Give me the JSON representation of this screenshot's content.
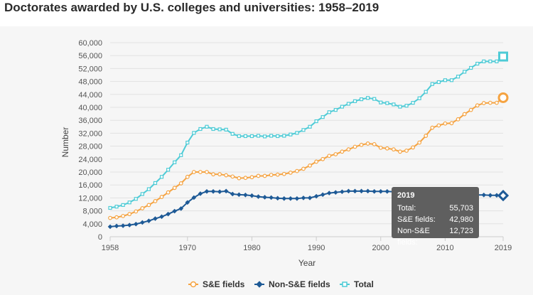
{
  "page": {
    "title": "Doctorates awarded by U.S. colleges and universities: 1958–2019"
  },
  "colors": {
    "se": "#f5a341",
    "nonse": "#1e5a96",
    "total": "#4ecbd6",
    "grid": "#e2e2e2",
    "axis": "#cccccc"
  },
  "chart_data": {
    "type": "line",
    "title": "Doctorates awarded by U.S. colleges and universities: 1958–2019",
    "xlabel": "Year",
    "ylabel": "Number",
    "xlim": [
      1958,
      2019
    ],
    "ylim": [
      0,
      60000
    ],
    "yticks": [
      0,
      4000,
      8000,
      12000,
      16000,
      20000,
      24000,
      28000,
      32000,
      36000,
      40000,
      44000,
      48000,
      52000,
      56000,
      60000
    ],
    "ytick_labels": [
      "0",
      "4,000",
      "8,000",
      "12,000",
      "16,000",
      "20,000",
      "24,000",
      "28,000",
      "32,000",
      "36,000",
      "40,000",
      "44,000",
      "48,000",
      "52,000",
      "56,000",
      "60,000"
    ],
    "xticks": [
      1958,
      1970,
      1980,
      1990,
      2000,
      2010,
      2019
    ],
    "xtick_labels": [
      "1958",
      "1970",
      "1980",
      "1990",
      "2000",
      "2010",
      "2019"
    ],
    "x": [
      1958,
      1959,
      1960,
      1961,
      1962,
      1963,
      1964,
      1965,
      1966,
      1967,
      1968,
      1969,
      1970,
      1971,
      1972,
      1973,
      1974,
      1975,
      1976,
      1977,
      1978,
      1979,
      1980,
      1981,
      1982,
      1983,
      1984,
      1985,
      1986,
      1987,
      1988,
      1989,
      1990,
      1991,
      1992,
      1993,
      1994,
      1995,
      1996,
      1997,
      1998,
      1999,
      2000,
      2001,
      2002,
      2003,
      2004,
      2005,
      2006,
      2007,
      2008,
      2009,
      2010,
      2011,
      2012,
      2013,
      2014,
      2015,
      2016,
      2017,
      2018,
      2019
    ],
    "series": [
      {
        "name": "S&E fields",
        "values": [
          5800,
          6000,
          6400,
          7000,
          7800,
          8800,
          9800,
          11000,
          12300,
          13700,
          15100,
          16500,
          18500,
          20000,
          20000,
          20000,
          19300,
          19300,
          19000,
          18600,
          18100,
          18200,
          18400,
          18800,
          18800,
          19100,
          19200,
          19400,
          19800,
          20300,
          21000,
          22000,
          23200,
          24000,
          25000,
          25500,
          26300,
          27000,
          27800,
          28400,
          28800,
          28600,
          27500,
          27300,
          27000,
          26300,
          26600,
          27600,
          29100,
          31200,
          33700,
          34400,
          35000,
          35100,
          36300,
          37900,
          39200,
          40600,
          41300,
          41400,
          41400,
          42980
        ]
      },
      {
        "name": "Non-S&E fields",
        "values": [
          3100,
          3300,
          3400,
          3600,
          3900,
          4400,
          4900,
          5600,
          6200,
          7000,
          7900,
          8700,
          10600,
          12100,
          13300,
          14000,
          14000,
          13900,
          14100,
          13200,
          13000,
          12900,
          12700,
          12400,
          12200,
          12100,
          11900,
          11800,
          11800,
          11800,
          12000,
          12000,
          12500,
          13000,
          13500,
          13700,
          13900,
          14100,
          14100,
          14100,
          14100,
          14000,
          14000,
          14000,
          13900,
          13900,
          13900,
          13800,
          13700,
          13600,
          13500,
          13400,
          13400,
          13300,
          13200,
          13100,
          13000,
          12900,
          12900,
          12800,
          12800,
          12723
        ]
      },
      {
        "name": "Total",
        "values": [
          8900,
          9300,
          9800,
          10600,
          11700,
          13200,
          14700,
          16600,
          18500,
          20700,
          23000,
          25200,
          29100,
          32100,
          33300,
          34000,
          33300,
          33200,
          33100,
          31800,
          31100,
          31100,
          31100,
          31200,
          31000,
          31200,
          31100,
          31200,
          31600,
          32100,
          33000,
          34000,
          35700,
          37000,
          38500,
          39200,
          40200,
          41100,
          41900,
          42500,
          42900,
          42600,
          41500,
          41300,
          40900,
          40200,
          40500,
          41400,
          42800,
          44800,
          47200,
          47800,
          48400,
          48400,
          49500,
          51000,
          52200,
          53500,
          54200,
          54200,
          54200,
          55703
        ]
      }
    ],
    "legend": {
      "position": "bottom-center",
      "entries": [
        "S&E fields",
        "Non-S&E fields",
        "Total"
      ]
    },
    "tooltip": {
      "year": "2019",
      "rows": [
        {
          "label": "Total:",
          "value": "55,703"
        },
        {
          "label": "S&E fields:",
          "value": "42,980"
        },
        {
          "label": "Non-S&E fields:",
          "value": "12,723"
        }
      ]
    }
  }
}
